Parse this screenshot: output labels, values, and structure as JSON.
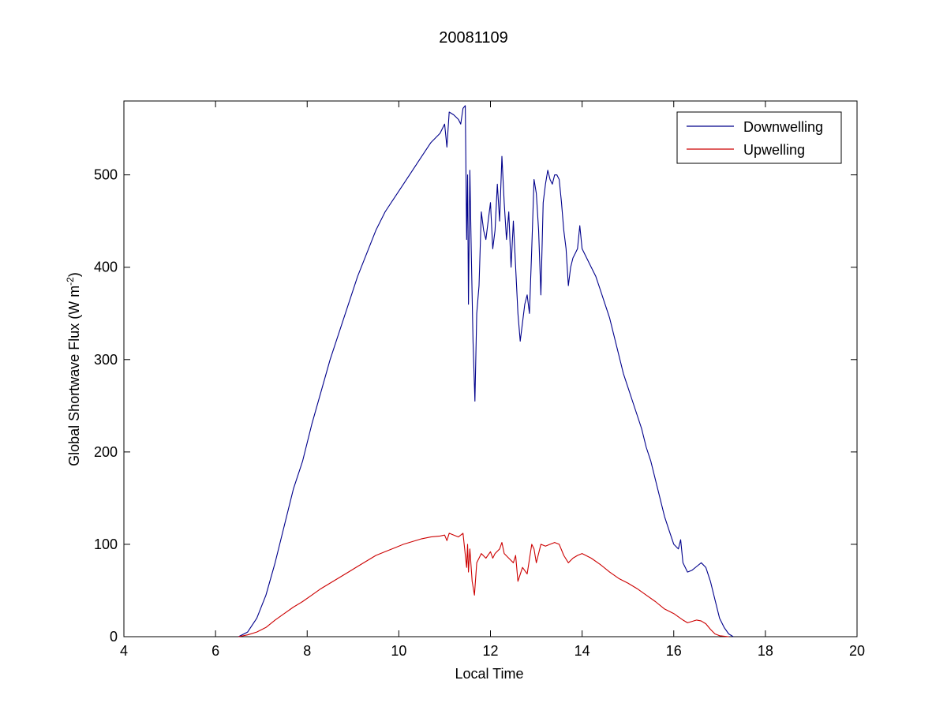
{
  "chart_data": {
    "type": "line",
    "title": "20081109",
    "xlabel": "Local Time",
    "ylabel": "Global Shortwave Flux (W m",
    "ylabel_sup": "-2",
    "ylabel_close": ")",
    "xlim": [
      4,
      20
    ],
    "ylim": [
      0,
      580
    ],
    "xticks": [
      4,
      6,
      8,
      10,
      12,
      14,
      16,
      18,
      20
    ],
    "yticks": [
      0,
      100,
      200,
      300,
      400,
      500
    ],
    "grid": false,
    "legend_position": "top-right",
    "series": [
      {
        "name": "Downwelling",
        "color": "#00008b",
        "x": [
          6.5,
          6.7,
          6.9,
          7.1,
          7.3,
          7.5,
          7.7,
          7.9,
          8.1,
          8.3,
          8.5,
          8.7,
          8.9,
          9.1,
          9.3,
          9.5,
          9.7,
          9.9,
          10.1,
          10.3,
          10.5,
          10.7,
          10.9,
          11.0,
          11.05,
          11.1,
          11.2,
          11.3,
          11.35,
          11.4,
          11.45,
          11.48,
          11.5,
          11.52,
          11.55,
          11.58,
          11.62,
          11.66,
          11.7,
          11.75,
          11.8,
          11.85,
          11.9,
          11.95,
          12.0,
          12.05,
          12.1,
          12.15,
          12.2,
          12.25,
          12.3,
          12.35,
          12.4,
          12.45,
          12.5,
          12.55,
          12.6,
          12.65,
          12.7,
          12.75,
          12.8,
          12.85,
          12.9,
          12.95,
          13.0,
          13.05,
          13.1,
          13.15,
          13.2,
          13.25,
          13.3,
          13.35,
          13.4,
          13.45,
          13.5,
          13.55,
          13.6,
          13.65,
          13.7,
          13.75,
          13.8,
          13.85,
          13.9,
          13.95,
          14.0,
          14.1,
          14.2,
          14.3,
          14.4,
          14.5,
          14.6,
          14.7,
          14.8,
          14.9,
          15.0,
          15.1,
          15.2,
          15.3,
          15.4,
          15.5,
          15.6,
          15.7,
          15.8,
          15.9,
          16.0,
          16.1,
          16.15,
          16.2,
          16.3,
          16.4,
          16.5,
          16.6,
          16.7,
          16.8,
          16.9,
          17.0,
          17.1,
          17.2,
          17.3
        ],
        "values": [
          0,
          5,
          20,
          45,
          80,
          120,
          160,
          190,
          230,
          265,
          300,
          330,
          360,
          390,
          415,
          440,
          460,
          475,
          490,
          505,
          520,
          535,
          545,
          555,
          530,
          568,
          565,
          560,
          555,
          572,
          575,
          430,
          500,
          360,
          505,
          420,
          320,
          255,
          350,
          380,
          460,
          440,
          430,
          450,
          470,
          420,
          440,
          490,
          450,
          520,
          470,
          430,
          460,
          400,
          450,
          400,
          350,
          320,
          340,
          360,
          370,
          350,
          420,
          495,
          480,
          440,
          370,
          470,
          490,
          505,
          495,
          490,
          500,
          500,
          495,
          470,
          440,
          420,
          380,
          400,
          410,
          415,
          420,
          445,
          420,
          410,
          400,
          390,
          375,
          360,
          345,
          325,
          305,
          285,
          270,
          255,
          240,
          225,
          205,
          190,
          170,
          150,
          130,
          115,
          100,
          95,
          105,
          80,
          70,
          72,
          76,
          80,
          75,
          60,
          40,
          20,
          10,
          3,
          0
        ]
      },
      {
        "name": "Upwelling",
        "color": "#cc0000",
        "x": [
          6.5,
          6.7,
          6.9,
          7.1,
          7.3,
          7.5,
          7.7,
          7.9,
          8.1,
          8.3,
          8.5,
          8.7,
          8.9,
          9.1,
          9.3,
          9.5,
          9.7,
          9.9,
          10.1,
          10.3,
          10.5,
          10.7,
          10.9,
          11.0,
          11.05,
          11.1,
          11.2,
          11.3,
          11.4,
          11.48,
          11.5,
          11.52,
          11.55,
          11.6,
          11.65,
          11.7,
          11.75,
          11.8,
          11.9,
          12.0,
          12.05,
          12.1,
          12.2,
          12.25,
          12.3,
          12.4,
          12.5,
          12.55,
          12.6,
          12.7,
          12.8,
          12.9,
          12.95,
          13.0,
          13.1,
          13.2,
          13.3,
          13.4,
          13.5,
          13.6,
          13.7,
          13.8,
          13.9,
          14.0,
          14.2,
          14.4,
          14.6,
          14.8,
          15.0,
          15.2,
          15.4,
          15.6,
          15.8,
          16.0,
          16.2,
          16.3,
          16.5,
          16.6,
          16.7,
          16.8,
          16.9,
          17.0,
          17.2
        ],
        "values": [
          0,
          2,
          5,
          10,
          18,
          25,
          32,
          38,
          45,
          52,
          58,
          64,
          70,
          76,
          82,
          88,
          92,
          96,
          100,
          103,
          106,
          108,
          109,
          110,
          104,
          112,
          110,
          108,
          112,
          75,
          100,
          70,
          95,
          60,
          45,
          80,
          85,
          90,
          85,
          92,
          85,
          90,
          95,
          102,
          90,
          85,
          80,
          88,
          60,
          75,
          68,
          100,
          95,
          80,
          100,
          98,
          100,
          102,
          100,
          88,
          80,
          85,
          88,
          90,
          85,
          78,
          70,
          63,
          58,
          52,
          45,
          38,
          30,
          25,
          18,
          15,
          18,
          17,
          14,
          8,
          3,
          1,
          0
        ]
      }
    ]
  }
}
